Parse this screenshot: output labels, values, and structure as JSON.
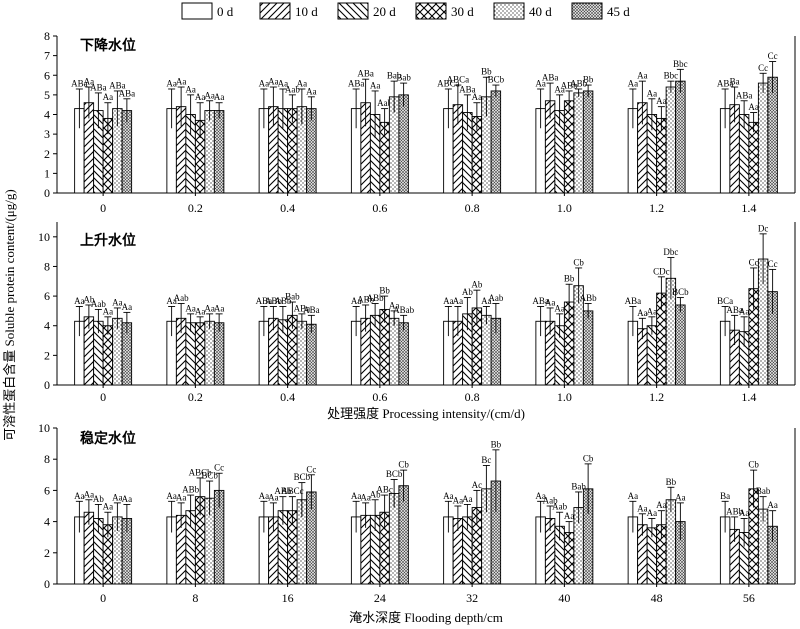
{
  "legend": {
    "items": [
      {
        "label": "0 d",
        "pattern": "plain"
      },
      {
        "label": "10 d",
        "pattern": "fslash"
      },
      {
        "label": "20 d",
        "pattern": "bslash"
      },
      {
        "label": "30 d",
        "pattern": "cross"
      },
      {
        "label": "40 d",
        "pattern": "dots"
      },
      {
        "label": "45 d",
        "pattern": "dense"
      }
    ]
  },
  "yaxis_label": "可溶性蛋白含量 Soluble protein content/(μg/g)",
  "chart_data": [
    {
      "type": "bar",
      "panel_title": "下降水位",
      "categories": [
        "0",
        "0.2",
        "0.4",
        "0.6",
        "0.8",
        "1.0",
        "1.2",
        "1.4"
      ],
      "xlabel": "",
      "ylim": [
        0,
        8
      ],
      "yticks": [
        0,
        1,
        2,
        3,
        4,
        5,
        6,
        7,
        8
      ],
      "series": [
        {
          "name": "0 d",
          "values": [
            4.3,
            4.3,
            4.3,
            4.3,
            4.3,
            4.3,
            4.3,
            4.3
          ],
          "errors": [
            1.0,
            1.0,
            1.0,
            1.0,
            1.0,
            1.0,
            1.0,
            1.0
          ],
          "labels": [
            "ABa",
            "Aa",
            "Aa",
            "ABa",
            "ABCa",
            "Aa",
            "Aa",
            "ABa"
          ]
        },
        {
          "name": "10 d",
          "values": [
            4.6,
            4.4,
            4.4,
            4.6,
            4.5,
            4.7,
            4.6,
            4.5
          ],
          "errors": [
            0.8,
            1.0,
            1.0,
            1.2,
            1.0,
            0.9,
            1.1,
            0.9
          ],
          "labels": [
            "Aa",
            "Aa",
            "Aa",
            "ABa",
            "ABCa",
            "ABa",
            "Aa",
            "Ba"
          ]
        },
        {
          "name": "20 d",
          "values": [
            4.2,
            4.0,
            4.3,
            4.0,
            4.1,
            4.2,
            4.0,
            4.0
          ],
          "errors": [
            0.9,
            1.0,
            1.0,
            1.2,
            0.9,
            0.8,
            0.8,
            0.7
          ],
          "labels": [
            "ABa",
            "Aa",
            "Aa",
            "Aa",
            "ABa",
            "Aa",
            "Aa",
            "ABa"
          ]
        },
        {
          "name": "30 d",
          "values": [
            3.8,
            3.7,
            4.3,
            3.6,
            3.9,
            4.7,
            3.8,
            3.6
          ],
          "errors": [
            0.8,
            0.9,
            0.7,
            0.7,
            0.7,
            0.5,
            0.6,
            0.5
          ],
          "labels": [
            "Aa",
            "Aa",
            "Aab",
            "Aab",
            "Aa",
            "ABb",
            "Aa",
            "Aa"
          ]
        },
        {
          "name": "40 d",
          "values": [
            4.3,
            4.2,
            4.4,
            4.9,
            4.9,
            5.1,
            5.4,
            5.6
          ],
          "errors": [
            0.9,
            0.5,
            0.9,
            0.8,
            1.0,
            0.2,
            0.3,
            0.5
          ],
          "labels": [
            "ABa",
            "Aa",
            "Aa",
            "Bab",
            "Bb",
            "ABb",
            "Bbc",
            "Cc"
          ]
        },
        {
          "name": "45 d",
          "values": [
            4.2,
            4.2,
            4.3,
            5.0,
            5.2,
            5.2,
            5.7,
            5.9
          ],
          "errors": [
            0.6,
            0.4,
            0.6,
            0.6,
            0.3,
            0.3,
            0.6,
            0.8
          ],
          "labels": [
            "ABa",
            "Aa",
            "Aa",
            "Bab",
            "BCb",
            "Bb",
            "Bbc",
            "Cc"
          ]
        }
      ]
    },
    {
      "type": "bar",
      "panel_title": "上升水位",
      "categories": [
        "0",
        "0.2",
        "0.4",
        "0.6",
        "0.8",
        "1.0",
        "1.2",
        "1.4"
      ],
      "xlabel": "处理强度 Processing intensity/(cm/d)",
      "ylim": [
        0,
        11
      ],
      "yticks": [
        0,
        2,
        4,
        6,
        8,
        10
      ],
      "series": [
        {
          "name": "0 d",
          "values": [
            4.3,
            4.3,
            4.3,
            4.3,
            4.3,
            4.3,
            4.3,
            4.3
          ],
          "errors": [
            1.0,
            1.0,
            1.0,
            1.0,
            1.0,
            1.0,
            1.0,
            1.0
          ],
          "labels": [
            "Aa",
            "Aa",
            "ABa",
            "Aa",
            "Aa",
            "ABa",
            "ABa",
            "BCa"
          ]
        },
        {
          "name": "10 d",
          "values": [
            4.6,
            4.5,
            4.5,
            4.5,
            4.3,
            4.3,
            3.8,
            3.7
          ],
          "errors": [
            0.8,
            1.0,
            0.8,
            0.9,
            1.0,
            0.9,
            0.7,
            1.0
          ],
          "labels": [
            "Ab",
            "Aab",
            "ABb",
            "ABb",
            "Aa",
            "Aa",
            "Aa",
            "ABa"
          ]
        },
        {
          "name": "20 d",
          "values": [
            4.3,
            4.2,
            4.4,
            4.7,
            4.8,
            4.0,
            4.0,
            3.6
          ],
          "errors": [
            0.8,
            0.6,
            0.9,
            0.8,
            1.1,
            0.8,
            0.6,
            1.0
          ],
          "labels": [
            "Aab",
            "Aa",
            "ABb",
            "ABb",
            "Ab",
            "Aa",
            "Aa",
            "Aa"
          ]
        },
        {
          "name": "30 d",
          "values": [
            4.0,
            4.2,
            4.7,
            5.1,
            5.2,
            5.6,
            6.2,
            6.5
          ],
          "errors": [
            0.6,
            0.4,
            0.9,
            0.9,
            1.2,
            1.2,
            1.1,
            1.4
          ],
          "labels": [
            "Aa",
            "Aa",
            "Bab",
            "Bb",
            "Ab",
            "Bb",
            "CDc",
            "Cc"
          ]
        },
        {
          "name": "40 d",
          "values": [
            4.5,
            4.3,
            4.3,
            4.5,
            4.7,
            6.7,
            7.2,
            8.5
          ],
          "errors": [
            0.7,
            0.5,
            0.5,
            0.5,
            0.6,
            1.2,
            1.4,
            1.7
          ],
          "labels": [
            "Aa",
            "Aa",
            "ABa",
            "Aa",
            "Aa",
            "Cb",
            "Dbc",
            "Dc"
          ]
        },
        {
          "name": "45 d",
          "values": [
            4.2,
            4.2,
            4.1,
            4.2,
            4.5,
            5.0,
            5.4,
            6.3
          ],
          "errors": [
            0.7,
            0.6,
            0.6,
            0.5,
            1.0,
            0.5,
            0.5,
            1.5
          ],
          "labels": [
            "Aa",
            "Aa",
            "ABa",
            "ABab",
            "Aab",
            "ABb",
            "BCb",
            "Cc"
          ]
        }
      ]
    },
    {
      "type": "bar",
      "panel_title": "稳定水位",
      "categories": [
        "0",
        "8",
        "16",
        "24",
        "32",
        "40",
        "48",
        "56"
      ],
      "xlabel": "淹水深度 Flooding depth/cm",
      "ylim": [
        0,
        10
      ],
      "yticks": [
        0,
        2,
        4,
        6,
        8,
        10
      ],
      "series": [
        {
          "name": "0 d",
          "values": [
            4.3,
            4.3,
            4.3,
            4.3,
            4.3,
            4.3,
            4.3,
            4.3
          ],
          "errors": [
            1.0,
            1.0,
            1.0,
            1.0,
            1.0,
            1.0,
            1.0,
            1.0
          ],
          "labels": [
            "Aa",
            "Aa",
            "Aa",
            "Aa",
            "Aa",
            "Aa",
            "Aa",
            "Ba"
          ]
        },
        {
          "name": "10 d",
          "values": [
            4.6,
            4.4,
            4.3,
            4.4,
            4.2,
            4.2,
            3.8,
            3.5
          ],
          "errors": [
            0.8,
            0.8,
            0.9,
            0.8,
            0.8,
            0.8,
            0.7,
            0.8
          ],
          "labels": [
            "Aa",
            "Aa",
            "Aa",
            "Aa",
            "Aa",
            "Aab",
            "Aa",
            "ABb"
          ]
        },
        {
          "name": "20 d",
          "values": [
            4.2,
            4.7,
            4.7,
            4.4,
            4.3,
            3.7,
            3.6,
            3.3
          ],
          "errors": [
            0.9,
            1.0,
            0.9,
            1.0,
            0.8,
            0.9,
            0.6,
            0.9
          ],
          "labels": [
            "Ab",
            "ABb",
            "ABb",
            "Ab",
            "Aa",
            "Aab",
            "Aa",
            "Aa"
          ]
        },
        {
          "name": "30 d",
          "values": [
            3.8,
            5.6,
            4.7,
            4.6,
            4.9,
            3.3,
            3.8,
            6.1
          ],
          "errors": [
            0.8,
            1.2,
            0.9,
            1.1,
            1.1,
            0.7,
            0.9,
            1.2
          ],
          "labels": [
            "Aa",
            "ABCb",
            "ABCc",
            "ABc",
            "Ac",
            "Aa",
            "Aa",
            "Cb"
          ]
        },
        {
          "name": "40 d",
          "values": [
            4.3,
            5.5,
            5.4,
            5.8,
            6.1,
            4.9,
            5.4,
            4.8
          ],
          "errors": [
            0.9,
            1.1,
            1.1,
            0.9,
            1.5,
            1.0,
            0.8,
            0.8
          ],
          "labels": [
            "Aa",
            "BCb",
            "BCb",
            "BCb",
            "Bc",
            "Bab",
            "Bb",
            "Bab"
          ]
        },
        {
          "name": "45 d",
          "values": [
            4.2,
            6.0,
            5.9,
            6.3,
            6.6,
            6.1,
            4.0,
            3.7
          ],
          "errors": [
            0.9,
            1.1,
            1.1,
            1.0,
            2.0,
            1.6,
            1.2,
            1.0
          ],
          "labels": [
            "Aa",
            "Cc",
            "Cc",
            "Cb",
            "Bb",
            "Cb",
            "Aa",
            "Aa"
          ]
        }
      ]
    }
  ]
}
